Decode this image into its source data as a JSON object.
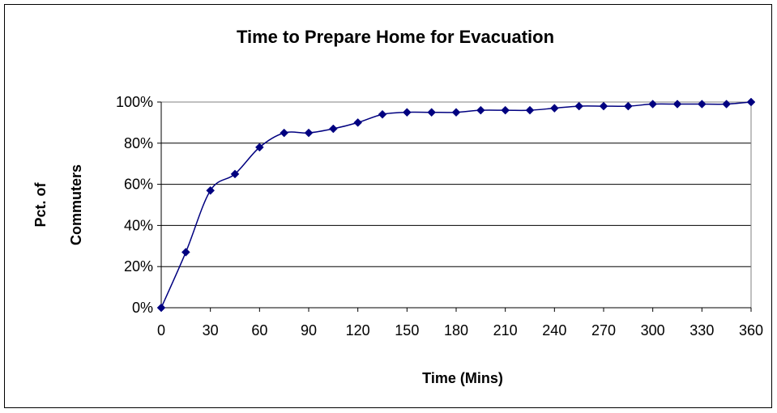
{
  "chart_data": {
    "type": "line",
    "title": "Time to Prepare Home for Evacuation",
    "xlabel": "Time  (Mins)",
    "ylabel_lines": [
      "Pct. of",
      "Commuters"
    ],
    "x_ticks": [
      "0",
      "30",
      "60",
      "90",
      "120",
      "150",
      "180",
      "210",
      "240",
      "270",
      "300",
      "330",
      "360"
    ],
    "y_ticks": [
      "0%",
      "20%",
      "40%",
      "60%",
      "80%",
      "100%"
    ],
    "xlim": [
      0,
      360
    ],
    "ylim": [
      0,
      100
    ],
    "grid": "horizontal",
    "legend": "none",
    "series": [
      {
        "color": "#000080",
        "marker": "diamond",
        "x": [
          0,
          15,
          30,
          45,
          60,
          75,
          90,
          105,
          120,
          135,
          150,
          165,
          180,
          195,
          210,
          225,
          240,
          255,
          270,
          285,
          300,
          315,
          330,
          345,
          360
        ],
        "y": [
          0,
          27,
          57,
          65,
          78,
          85,
          85,
          87,
          90,
          94,
          95,
          95,
          95,
          96,
          96,
          96,
          97,
          98,
          98,
          98,
          99,
          99,
          99,
          99,
          100
        ]
      }
    ]
  }
}
